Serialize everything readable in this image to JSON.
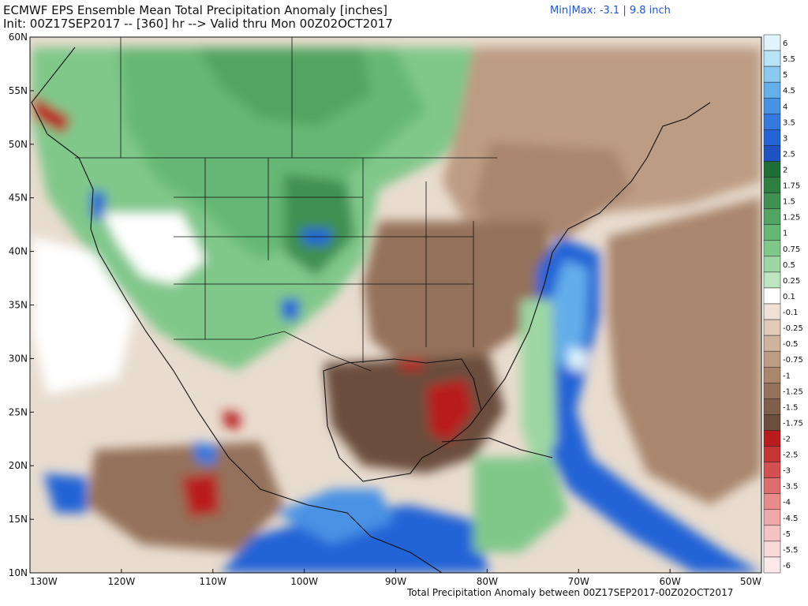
{
  "header": {
    "title": "ECMWF EPS Ensemble Mean Total Precipitation Anomaly [inches]",
    "init": "Init: 00Z17SEP2017 -- [360] hr --> Valid thru Mon 00Z02OCT2017",
    "minmax": "Min|Max: -3.1 | 9.8 inch"
  },
  "footer": {
    "caption": "Total Precipitation Anomaly between 00Z17SEP2017-00Z02OCT2017"
  },
  "map": {
    "projection": "lat-lon",
    "lon_range": [
      -130,
      -50
    ],
    "lat_range": [
      10,
      60
    ],
    "lat_labels": [
      "60N",
      "55N",
      "50N",
      "45N",
      "40N",
      "35N",
      "30N",
      "25N",
      "20N",
      "15N",
      "10N"
    ],
    "lon_labels": [
      "130W",
      "120W",
      "110W",
      "100W",
      "90W",
      "80W",
      "70W",
      "60W",
      "50W"
    ]
  },
  "colorbar": {
    "entries": [
      {
        "label": "6",
        "color": "#dff4fb"
      },
      {
        "label": "5.5",
        "color": "#b9e3f6"
      },
      {
        "label": "5",
        "color": "#8cc9f0"
      },
      {
        "label": "4.5",
        "color": "#64aeea"
      },
      {
        "label": "4",
        "color": "#4892e4"
      },
      {
        "label": "3.5",
        "color": "#3578df"
      },
      {
        "label": "3",
        "color": "#2464d6"
      },
      {
        "label": "2.5",
        "color": "#1f53c4"
      },
      {
        "label": "2",
        "color": "#1f6e36"
      },
      {
        "label": "1.75",
        "color": "#2e7e42"
      },
      {
        "label": "1.5",
        "color": "#3f9051"
      },
      {
        "label": "1.25",
        "color": "#52a462"
      },
      {
        "label": "1",
        "color": "#66b774"
      },
      {
        "label": "0.75",
        "color": "#80c88a"
      },
      {
        "label": "0.5",
        "color": "#9dd7a3"
      },
      {
        "label": "0.25",
        "color": "#bde5c0"
      },
      {
        "label": "0.1",
        "color": "#ffffff"
      },
      {
        "label": "-0.1",
        "color": "#efe1d5"
      },
      {
        "label": "-0.25",
        "color": "#e0cbb9"
      },
      {
        "label": "-0.5",
        "color": "#cfb39d"
      },
      {
        "label": "-0.75",
        "color": "#bd9c84"
      },
      {
        "label": "-1",
        "color": "#a9866d"
      },
      {
        "label": "-1.25",
        "color": "#94715a"
      },
      {
        "label": "-1.5",
        "color": "#7f5f4a"
      },
      {
        "label": "-1.75",
        "color": "#6b4e3c"
      },
      {
        "label": "-2",
        "color": "#b81c1c"
      },
      {
        "label": "-2.5",
        "color": "#c63434"
      },
      {
        "label": "-3",
        "color": "#d45050"
      },
      {
        "label": "-3.5",
        "color": "#de6d6d"
      },
      {
        "label": "-4",
        "color": "#e88b8b"
      },
      {
        "label": "-4.5",
        "color": "#efa8a8"
      },
      {
        "label": "-5",
        "color": "#f5c3c3"
      },
      {
        "label": "-5.5",
        "color": "#fad9d9"
      },
      {
        "label": "-6",
        "color": "#fde9e9"
      }
    ]
  }
}
